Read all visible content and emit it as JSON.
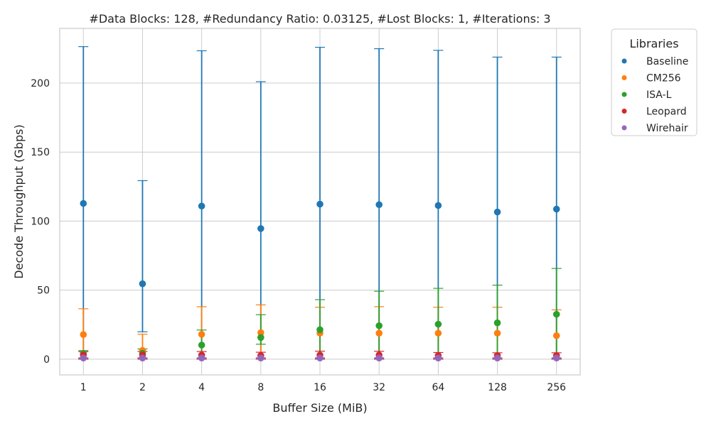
{
  "chart_data": {
    "type": "scatter",
    "title": "#Data Blocks: 128, #Redundancy Ratio: 0.03125, #Lost Blocks: 1, #Iterations: 3",
    "xlabel": "Buffer Size (MiB)",
    "ylabel": "Decode Throughput (Gbps)",
    "categories": [
      "1",
      "2",
      "4",
      "8",
      "16",
      "32",
      "64",
      "128",
      "256"
    ],
    "ylim": [
      -11.4,
      239.6
    ],
    "yticks": [
      0,
      50,
      100,
      150,
      200
    ],
    "grid": true,
    "legend": {
      "title": "Libraries",
      "placement": "outside-top-right"
    },
    "series": [
      {
        "name": "Baseline",
        "color": "#1f77b4",
        "values": [
          112.8,
          54.6,
          110.9,
          94.6,
          112.3,
          111.9,
          111.3,
          106.6,
          108.7
        ],
        "upper": [
          226.4,
          129.3,
          223.4,
          201.0,
          225.9,
          224.9,
          223.7,
          218.8,
          218.8
        ],
        "lower": [
          0.0,
          19.8,
          0.0,
          0.0,
          0.0,
          0.0,
          0.0,
          0.0,
          0.0
        ]
      },
      {
        "name": "CM256",
        "color": "#ff7f0e",
        "values": [
          17.8,
          6.3,
          18.0,
          19.2,
          18.8,
          18.8,
          18.8,
          18.8,
          17.0
        ],
        "upper": [
          36.5,
          18.0,
          38.0,
          39.3,
          37.6,
          38.0,
          37.6,
          37.6,
          35.7
        ],
        "lower": [
          0.0,
          0.0,
          0.0,
          0.0,
          0.0,
          0.0,
          0.0,
          0.0,
          0.0
        ]
      },
      {
        "name": "ISA-L",
        "color": "#2ca02c",
        "values": [
          4.0,
          4.2,
          10.2,
          15.7,
          21.3,
          24.2,
          25.3,
          26.3,
          32.5
        ],
        "upper": [
          6.2,
          7.4,
          21.1,
          32.2,
          43.1,
          49.2,
          51.3,
          53.6,
          65.7
        ],
        "lower": [
          0.0,
          0.0,
          0.0,
          10.8,
          0.0,
          0.0,
          0.0,
          0.0,
          0.0
        ]
      },
      {
        "name": "Leopard",
        "color": "#d62728",
        "values": [
          3.0,
          3.0,
          2.9,
          2.6,
          3.0,
          3.0,
          2.6,
          2.6,
          2.6
        ],
        "upper": [
          5.4,
          5.6,
          5.5,
          5.0,
          5.8,
          5.7,
          4.8,
          4.6,
          4.6
        ],
        "lower": [
          0.0,
          0.0,
          0.0,
          0.0,
          0.0,
          0.0,
          0.0,
          0.0,
          0.0
        ]
      },
      {
        "name": "Wirehair",
        "color": "#9467bd",
        "values": [
          0.8,
          0.8,
          0.8,
          0.8,
          0.8,
          0.8,
          0.8,
          0.8,
          0.8
        ],
        "upper": [
          1.0,
          1.0,
          1.0,
          1.0,
          1.0,
          1.0,
          1.0,
          1.0,
          1.0
        ],
        "lower": [
          0.6,
          0.6,
          0.6,
          0.6,
          0.6,
          0.6,
          0.6,
          0.6,
          0.6
        ]
      }
    ]
  }
}
